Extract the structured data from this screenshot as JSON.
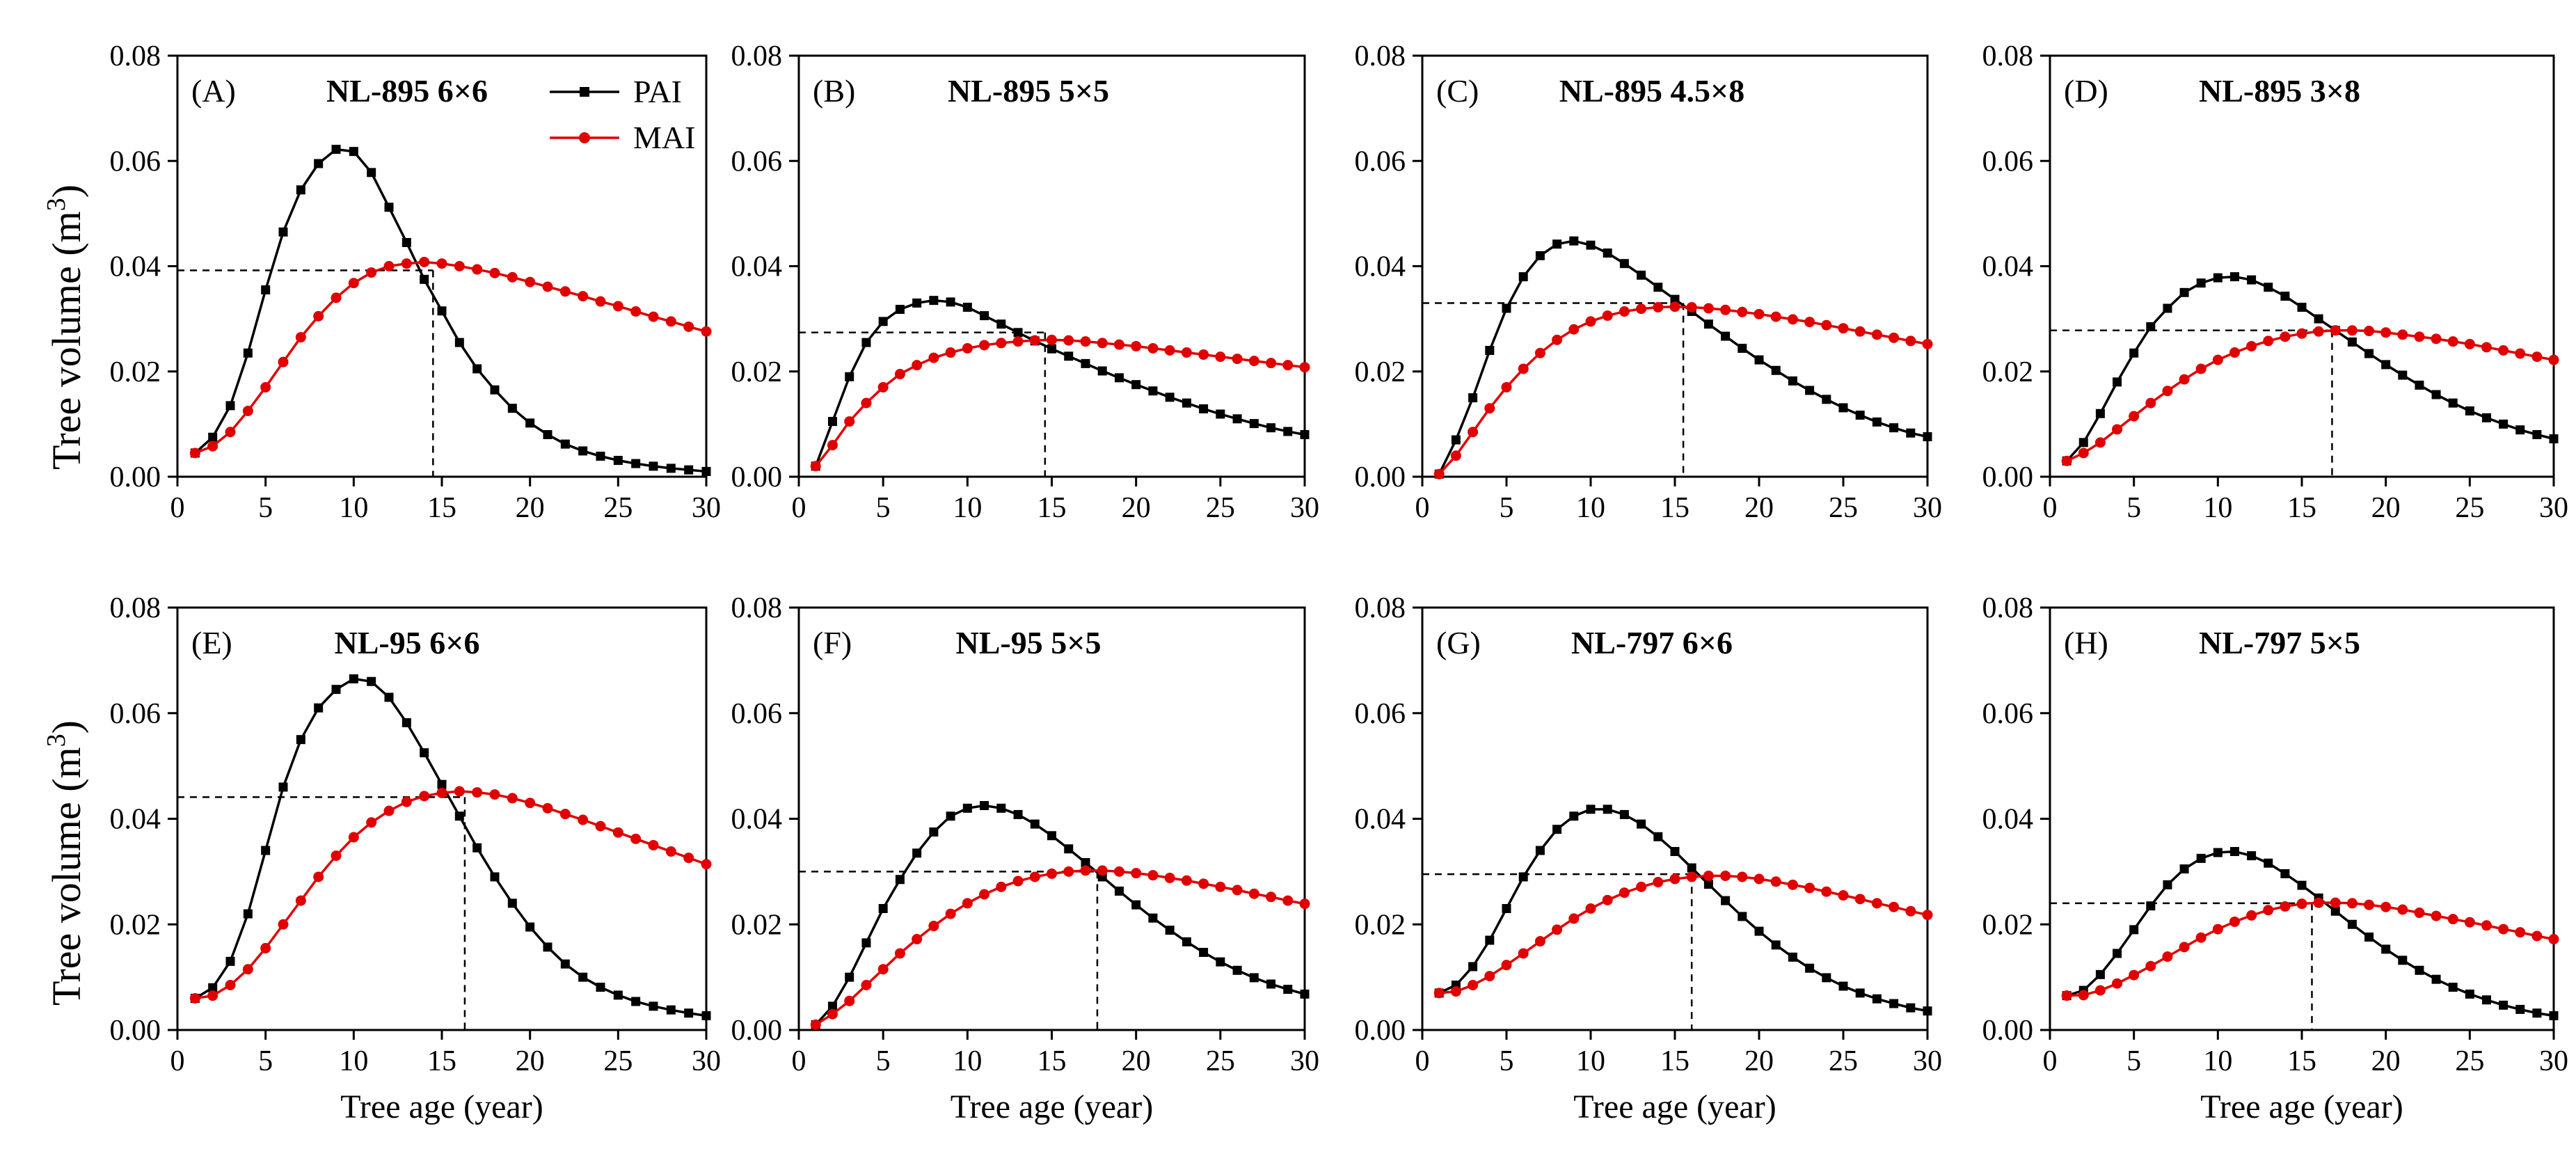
{
  "figure": {
    "ylabel_main": "Tree volume (m",
    "ylabel_sup": "3",
    "ylabel_close": ")",
    "xlabel": "Tree age (year)"
  },
  "legend": [
    {
      "name": "PAI",
      "color": "#000000",
      "marker": "square"
    },
    {
      "name": "MAI",
      "color": "#e00000",
      "marker": "circle"
    }
  ],
  "chart_data": [
    {
      "type": "line",
      "panel": "(A)",
      "title": "NL-895 6×6",
      "xlim": [
        0,
        30
      ],
      "ylim": [
        0,
        0.08
      ],
      "xticks": [
        "0",
        "5",
        "10",
        "15",
        "20",
        "25",
        "30"
      ],
      "yticks": [
        "0.00",
        "0.02",
        "0.04",
        "0.06",
        "0.08"
      ],
      "x": [
        1,
        2,
        3,
        4,
        5,
        6,
        7,
        8,
        9,
        10,
        11,
        12,
        13,
        14,
        15,
        16,
        17,
        18,
        19,
        20,
        21,
        22,
        23,
        24,
        25,
        26,
        27,
        28,
        29,
        30
      ],
      "series": [
        {
          "name": "PAI",
          "values": [
            0.0045,
            0.0075,
            0.0135,
            0.0235,
            0.0355,
            0.0465,
            0.0545,
            0.0595,
            0.0622,
            0.0618,
            0.0578,
            0.0512,
            0.0445,
            0.0375,
            0.0315,
            0.0255,
            0.0205,
            0.0165,
            0.013,
            0.0102,
            0.008,
            0.0062,
            0.0049,
            0.0039,
            0.0031,
            0.0025,
            0.002,
            0.0016,
            0.0013,
            0.001
          ]
        },
        {
          "name": "MAI",
          "values": [
            0.0045,
            0.0058,
            0.0085,
            0.0125,
            0.017,
            0.0218,
            0.0265,
            0.0305,
            0.034,
            0.0368,
            0.0388,
            0.04,
            0.0405,
            0.0408,
            0.0405,
            0.04,
            0.0394,
            0.0387,
            0.0379,
            0.037,
            0.0361,
            0.0352,
            0.0343,
            0.0333,
            0.0324,
            0.0314,
            0.0304,
            0.0295,
            0.0285,
            0.0276
          ]
        }
      ],
      "intersection": {
        "x": 14.5,
        "y": 0.0392
      }
    },
    {
      "type": "line",
      "panel": "(B)",
      "title": "NL-895 5×5",
      "xlim": [
        0,
        30
      ],
      "ylim": [
        0,
        0.08
      ],
      "xticks": [
        "0",
        "5",
        "10",
        "15",
        "20",
        "25",
        "30"
      ],
      "yticks": [
        "0.00",
        "0.02",
        "0.04",
        "0.06",
        "0.08"
      ],
      "x": [
        1,
        2,
        3,
        4,
        5,
        6,
        7,
        8,
        9,
        10,
        11,
        12,
        13,
        14,
        15,
        16,
        17,
        18,
        19,
        20,
        21,
        22,
        23,
        24,
        25,
        26,
        27,
        28,
        29,
        30
      ],
      "series": [
        {
          "name": "PAI",
          "values": [
            0.002,
            0.0105,
            0.019,
            0.0255,
            0.0295,
            0.0318,
            0.033,
            0.0335,
            0.0332,
            0.0322,
            0.0306,
            0.029,
            0.0274,
            0.0258,
            0.0243,
            0.0229,
            0.0215,
            0.0201,
            0.0188,
            0.0175,
            0.0163,
            0.0151,
            0.014,
            0.0129,
            0.0119,
            0.011,
            0.0101,
            0.0093,
            0.0086,
            0.008
          ]
        },
        {
          "name": "MAI",
          "values": [
            0.002,
            0.006,
            0.0105,
            0.014,
            0.017,
            0.0195,
            0.0212,
            0.0226,
            0.0236,
            0.0244,
            0.025,
            0.0254,
            0.0257,
            0.0259,
            0.026,
            0.0259,
            0.0257,
            0.0254,
            0.0251,
            0.0248,
            0.0244,
            0.024,
            0.0236,
            0.0232,
            0.0228,
            0.0224,
            0.022,
            0.0216,
            0.0212,
            0.0208
          ]
        }
      ],
      "intersection": {
        "x": 14.6,
        "y": 0.0274
      }
    },
    {
      "type": "line",
      "panel": "(C)",
      "title": "NL-895 4.5×8",
      "xlim": [
        0,
        30
      ],
      "ylim": [
        0,
        0.08
      ],
      "xticks": [
        "0",
        "5",
        "10",
        "15",
        "20",
        "25",
        "30"
      ],
      "yticks": [
        "0.00",
        "0.02",
        "0.04",
        "0.06",
        "0.08"
      ],
      "x": [
        1,
        2,
        3,
        4,
        5,
        6,
        7,
        8,
        9,
        10,
        11,
        12,
        13,
        14,
        15,
        16,
        17,
        18,
        19,
        20,
        21,
        22,
        23,
        24,
        25,
        26,
        27,
        28,
        29,
        30
      ],
      "series": [
        {
          "name": "PAI",
          "values": [
            0.0005,
            0.007,
            0.015,
            0.024,
            0.032,
            0.038,
            0.042,
            0.0442,
            0.0448,
            0.044,
            0.0425,
            0.0405,
            0.0383,
            0.036,
            0.0337,
            0.0314,
            0.029,
            0.0267,
            0.0244,
            0.0222,
            0.0202,
            0.0182,
            0.0164,
            0.0147,
            0.0131,
            0.0117,
            0.0104,
            0.0093,
            0.0083,
            0.0076
          ]
        },
        {
          "name": "MAI",
          "values": [
            0.0005,
            0.004,
            0.0085,
            0.013,
            0.017,
            0.0205,
            0.0235,
            0.026,
            0.028,
            0.0295,
            0.0306,
            0.0314,
            0.0319,
            0.0322,
            0.0323,
            0.0322,
            0.032,
            0.0317,
            0.0313,
            0.0309,
            0.0304,
            0.0299,
            0.0294,
            0.0288,
            0.0282,
            0.0276,
            0.027,
            0.0264,
            0.0258,
            0.0252
          ]
        }
      ],
      "intersection": {
        "x": 15.5,
        "y": 0.033
      }
    },
    {
      "type": "line",
      "panel": "(D)",
      "title": "NL-895 3×8",
      "xlim": [
        0,
        30
      ],
      "ylim": [
        0,
        0.08
      ],
      "xticks": [
        "0",
        "5",
        "10",
        "15",
        "20",
        "25",
        "30"
      ],
      "yticks": [
        "0.00",
        "0.02",
        "0.04",
        "0.06",
        "0.08"
      ],
      "x": [
        1,
        2,
        3,
        4,
        5,
        6,
        7,
        8,
        9,
        10,
        11,
        12,
        13,
        14,
        15,
        16,
        17,
        18,
        19,
        20,
        21,
        22,
        23,
        24,
        25,
        26,
        27,
        28,
        29,
        30
      ],
      "series": [
        {
          "name": "PAI",
          "values": [
            0.003,
            0.0065,
            0.012,
            0.018,
            0.0235,
            0.0285,
            0.032,
            0.035,
            0.0368,
            0.0378,
            0.038,
            0.0374,
            0.036,
            0.0343,
            0.0322,
            0.03,
            0.0278,
            0.0256,
            0.0234,
            0.0213,
            0.0193,
            0.0174,
            0.0156,
            0.014,
            0.0125,
            0.0112,
            0.01,
            0.0089,
            0.008,
            0.0072
          ]
        },
        {
          "name": "MAI",
          "values": [
            0.003,
            0.0045,
            0.0065,
            0.009,
            0.0115,
            0.014,
            0.0163,
            0.0185,
            0.0205,
            0.0222,
            0.0236,
            0.0248,
            0.0258,
            0.0266,
            0.0272,
            0.0276,
            0.0278,
            0.0278,
            0.0277,
            0.0274,
            0.027,
            0.0266,
            0.0262,
            0.0257,
            0.0252,
            0.0246,
            0.024,
            0.0234,
            0.0228,
            0.0222
          ]
        }
      ],
      "intersection": {
        "x": 16.8,
        "y": 0.0278
      }
    },
    {
      "type": "line",
      "panel": "(E)",
      "title": "NL-95 6×6",
      "xlim": [
        0,
        30
      ],
      "ylim": [
        0,
        0.08
      ],
      "xticks": [
        "0",
        "5",
        "10",
        "15",
        "20",
        "25",
        "30"
      ],
      "yticks": [
        "0.00",
        "0.02",
        "0.04",
        "0.06",
        "0.08"
      ],
      "x": [
        1,
        2,
        3,
        4,
        5,
        6,
        7,
        8,
        9,
        10,
        11,
        12,
        13,
        14,
        15,
        16,
        17,
        18,
        19,
        20,
        21,
        22,
        23,
        24,
        25,
        26,
        27,
        28,
        29,
        30
      ],
      "series": [
        {
          "name": "PAI",
          "values": [
            0.006,
            0.008,
            0.013,
            0.022,
            0.034,
            0.046,
            0.055,
            0.061,
            0.0645,
            0.0665,
            0.066,
            0.063,
            0.0582,
            0.0525,
            0.0465,
            0.0405,
            0.0345,
            0.029,
            0.024,
            0.0195,
            0.0157,
            0.0125,
            0.01,
            0.0081,
            0.0066,
            0.0054,
            0.0045,
            0.0038,
            0.0032,
            0.0027
          ]
        },
        {
          "name": "MAI",
          "values": [
            0.006,
            0.0065,
            0.0085,
            0.0115,
            0.0155,
            0.02,
            0.0245,
            0.029,
            0.033,
            0.0365,
            0.0393,
            0.0415,
            0.0432,
            0.0443,
            0.0449,
            0.0452,
            0.045,
            0.0446,
            0.0439,
            0.043,
            0.042,
            0.0409,
            0.0398,
            0.0386,
            0.0374,
            0.0362,
            0.035,
            0.0338,
            0.0326,
            0.0314
          ]
        }
      ],
      "intersection": {
        "x": 16.3,
        "y": 0.0441
      }
    },
    {
      "type": "line",
      "panel": "(F)",
      "title": "NL-95 5×5",
      "xlim": [
        0,
        30
      ],
      "ylim": [
        0,
        0.08
      ],
      "xticks": [
        "0",
        "5",
        "10",
        "15",
        "20",
        "25",
        "30"
      ],
      "yticks": [
        "0.00",
        "0.02",
        "0.04",
        "0.06",
        "0.08"
      ],
      "x": [
        1,
        2,
        3,
        4,
        5,
        6,
        7,
        8,
        9,
        10,
        11,
        12,
        13,
        14,
        15,
        16,
        17,
        18,
        19,
        20,
        21,
        22,
        23,
        24,
        25,
        26,
        27,
        28,
        29,
        30
      ],
      "series": [
        {
          "name": "PAI",
          "values": [
            0.001,
            0.0045,
            0.01,
            0.0165,
            0.023,
            0.0285,
            0.0335,
            0.0375,
            0.0405,
            0.042,
            0.0425,
            0.042,
            0.0408,
            0.039,
            0.0368,
            0.0343,
            0.0317,
            0.029,
            0.0263,
            0.0237,
            0.0212,
            0.0189,
            0.0167,
            0.0147,
            0.0129,
            0.0113,
            0.0099,
            0.0087,
            0.0077,
            0.0068
          ]
        },
        {
          "name": "MAI",
          "values": [
            0.001,
            0.003,
            0.0055,
            0.0085,
            0.0115,
            0.0145,
            0.0172,
            0.0197,
            0.022,
            0.024,
            0.0257,
            0.0271,
            0.0282,
            0.029,
            0.0296,
            0.03,
            0.0302,
            0.0302,
            0.03,
            0.0297,
            0.0293,
            0.0288,
            0.0283,
            0.0277,
            0.0271,
            0.0265,
            0.0258,
            0.0252,
            0.0245,
            0.0239
          ]
        }
      ],
      "intersection": {
        "x": 17.7,
        "y": 0.03
      }
    },
    {
      "type": "line",
      "panel": "(G)",
      "title": "NL-797 6×6",
      "xlim": [
        0,
        30
      ],
      "ylim": [
        0,
        0.08
      ],
      "xticks": [
        "0",
        "5",
        "10",
        "15",
        "20",
        "25",
        "30"
      ],
      "yticks": [
        "0.00",
        "0.02",
        "0.04",
        "0.06",
        "0.08"
      ],
      "x": [
        1,
        2,
        3,
        4,
        5,
        6,
        7,
        8,
        9,
        10,
        11,
        12,
        13,
        14,
        15,
        16,
        17,
        18,
        19,
        20,
        21,
        22,
        23,
        24,
        25,
        26,
        27,
        28,
        29,
        30
      ],
      "series": [
        {
          "name": "PAI",
          "values": [
            0.007,
            0.0085,
            0.012,
            0.017,
            0.023,
            0.029,
            0.034,
            0.038,
            0.0405,
            0.0418,
            0.0418,
            0.0408,
            0.039,
            0.0366,
            0.0338,
            0.0307,
            0.0276,
            0.0245,
            0.0215,
            0.0187,
            0.0161,
            0.0138,
            0.0117,
            0.0099,
            0.0083,
            0.007,
            0.0059,
            0.005,
            0.0042,
            0.0036
          ]
        },
        {
          "name": "MAI",
          "values": [
            0.007,
            0.0073,
            0.0085,
            0.0102,
            0.0123,
            0.0145,
            0.0168,
            0.019,
            0.0211,
            0.023,
            0.0246,
            0.026,
            0.0271,
            0.028,
            0.0286,
            0.029,
            0.0292,
            0.0292,
            0.029,
            0.0286,
            0.0281,
            0.0275,
            0.0269,
            0.0262,
            0.0255,
            0.0248,
            0.024,
            0.0233,
            0.0225,
            0.0218
          ]
        }
      ],
      "intersection": {
        "x": 16.0,
        "y": 0.0295
      }
    },
    {
      "type": "line",
      "panel": "(H)",
      "title": "NL-797 5×5",
      "xlim": [
        0,
        30
      ],
      "ylim": [
        0,
        0.08
      ],
      "xticks": [
        "0",
        "5",
        "10",
        "15",
        "20",
        "25",
        "30"
      ],
      "yticks": [
        "0.00",
        "0.02",
        "0.04",
        "0.06",
        "0.08"
      ],
      "x": [
        1,
        2,
        3,
        4,
        5,
        6,
        7,
        8,
        9,
        10,
        11,
        12,
        13,
        14,
        15,
        16,
        17,
        18,
        19,
        20,
        21,
        22,
        23,
        24,
        25,
        26,
        27,
        28,
        29,
        30
      ],
      "series": [
        {
          "name": "PAI",
          "values": [
            0.0065,
            0.0075,
            0.0105,
            0.0145,
            0.019,
            0.0235,
            0.0275,
            0.0305,
            0.0325,
            0.0336,
            0.0338,
            0.033,
            0.0316,
            0.0296,
            0.0274,
            0.025,
            0.0225,
            0.02,
            0.0176,
            0.0153,
            0.0132,
            0.0113,
            0.0096,
            0.0081,
            0.0068,
            0.0057,
            0.0047,
            0.0039,
            0.0032,
            0.0027
          ]
        },
        {
          "name": "MAI",
          "values": [
            0.0065,
            0.0066,
            0.0075,
            0.0088,
            0.0104,
            0.0121,
            0.0139,
            0.0157,
            0.0175,
            0.0191,
            0.0205,
            0.0217,
            0.0227,
            0.0234,
            0.0239,
            0.0241,
            0.0241,
            0.024,
            0.0237,
            0.0233,
            0.0228,
            0.0222,
            0.0216,
            0.021,
            0.0204,
            0.0198,
            0.0191,
            0.0185,
            0.0178,
            0.0172
          ]
        }
      ],
      "intersection": {
        "x": 15.6,
        "y": 0.024
      }
    }
  ]
}
